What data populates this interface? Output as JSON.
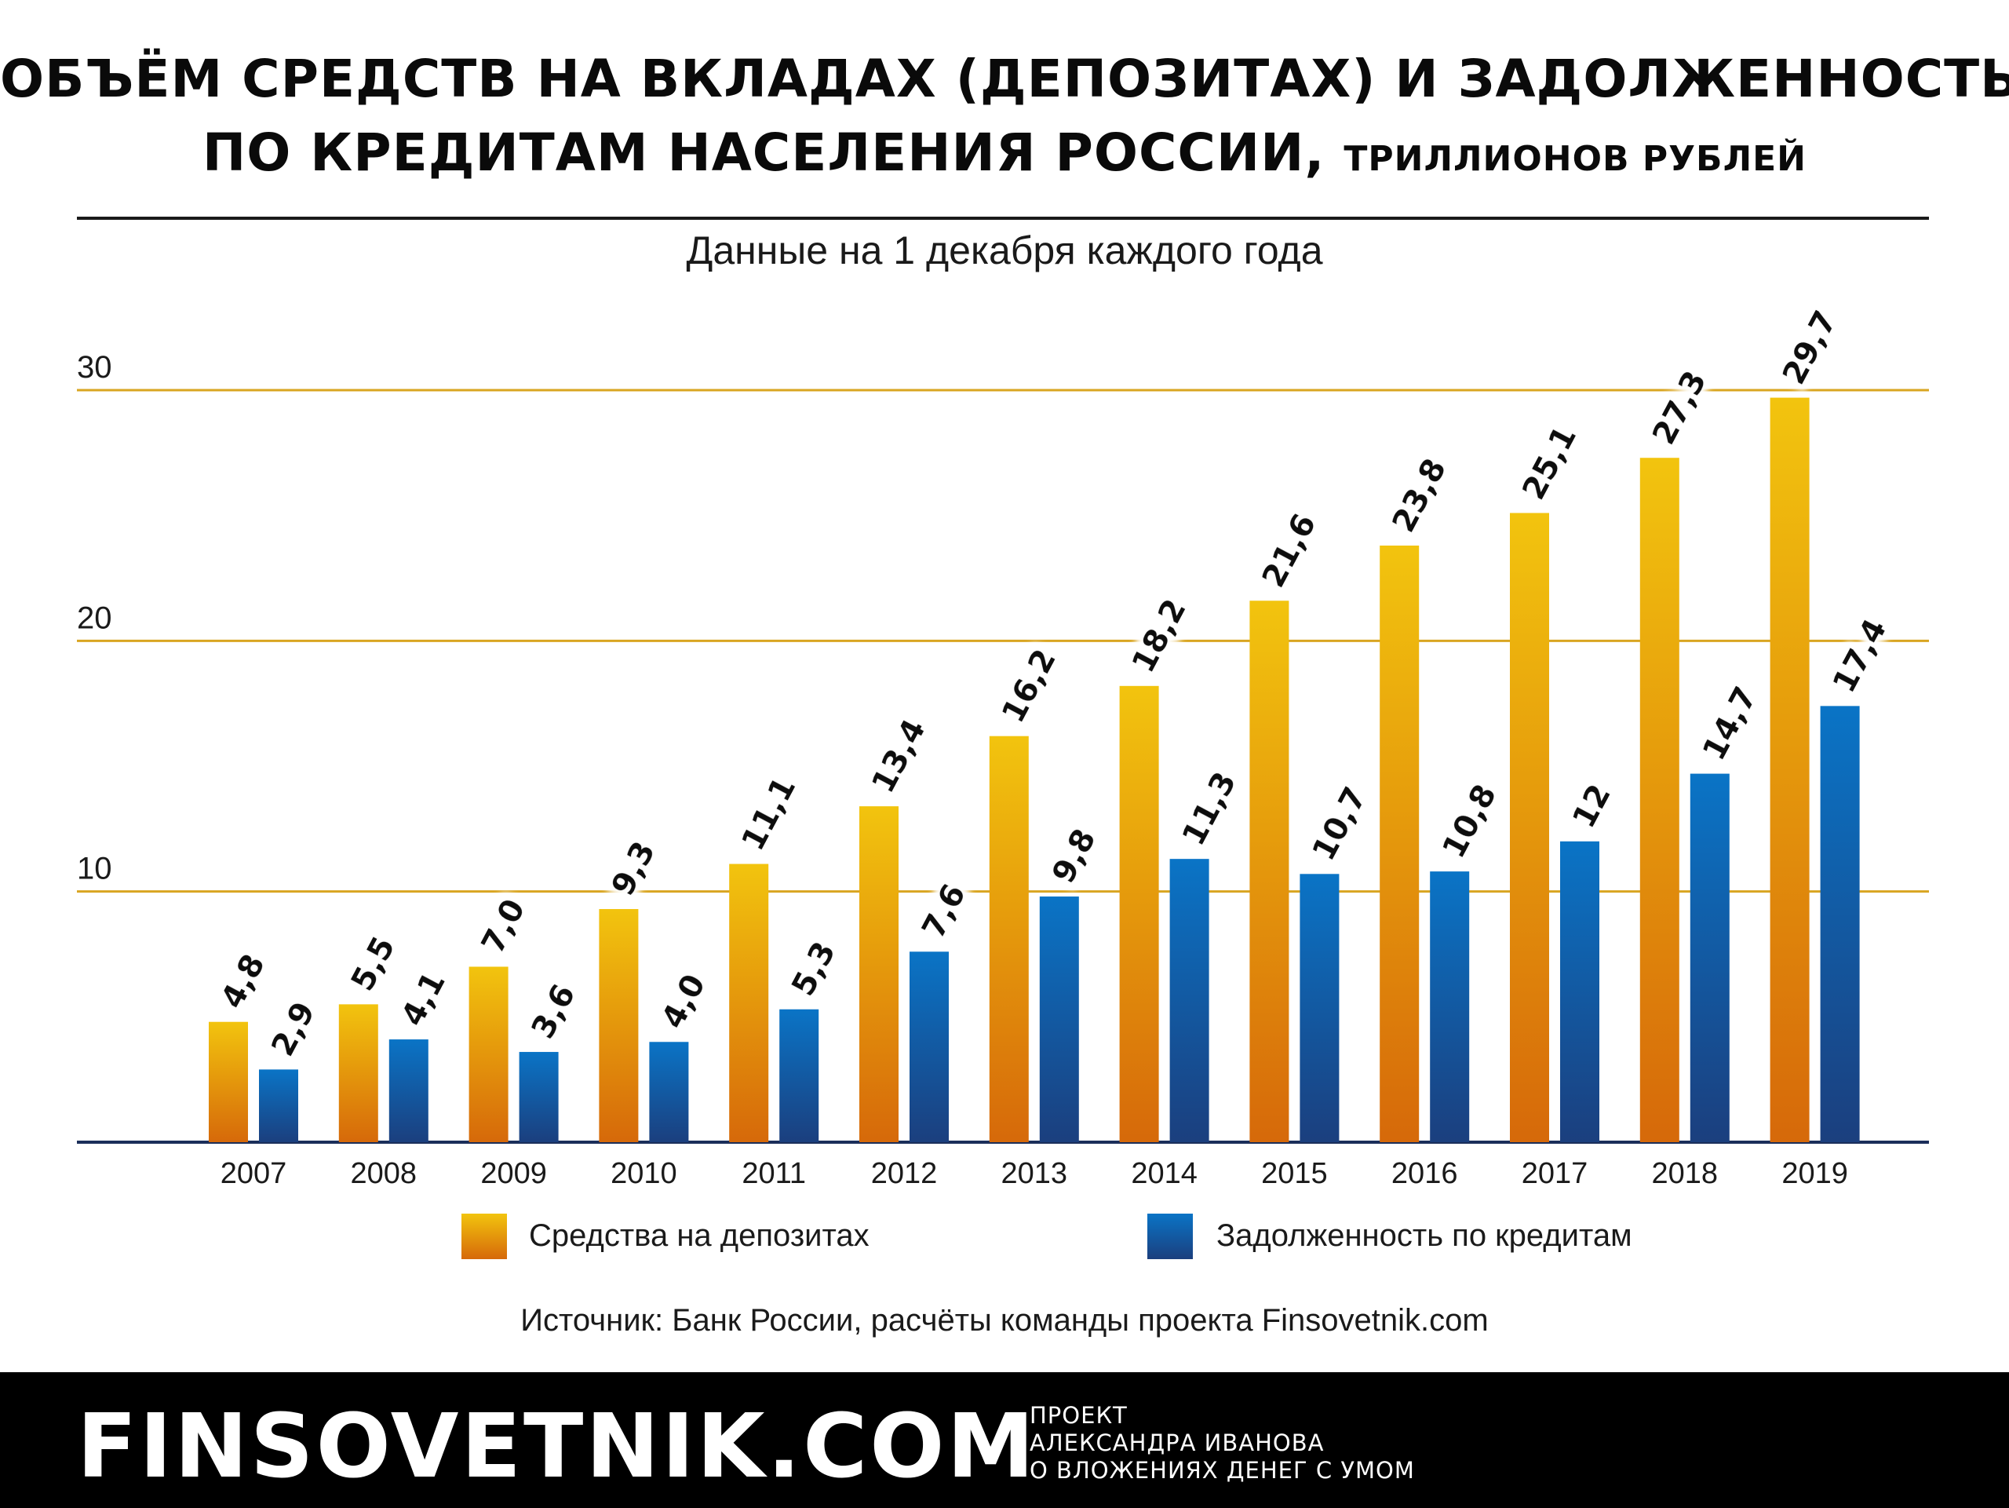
{
  "header": {
    "title_line1": "ОБЪЁМ СРЕДСТВ НА ВКЛАДАХ (ДЕПОЗИТАХ) И ЗАДОЛЖЕННОСТЬ",
    "title_line2": "ПО КРЕДИТАМ НАСЕЛЕНИЯ РОССИИ,",
    "title_units": "ТРИЛЛИОНОВ РУБЛЕЙ",
    "subtitle": "Данные на 1 декабря каждого года"
  },
  "chart_data": {
    "type": "bar",
    "title": "ОБЪЁМ СРЕДСТВ НА ВКЛАДАХ (ДЕПОЗИТАХ) И ЗАДОЛЖЕННОСТЬ ПО КРЕДИТАМ НАСЕЛЕНИЯ РОССИИ, ТРИЛЛИОНОВ РУБЛЕЙ",
    "subtitle": "Данные на 1 декабря каждого года",
    "categories": [
      "2007",
      "2008",
      "2009",
      "2010",
      "2011",
      "2012",
      "2013",
      "2014",
      "2015",
      "2016",
      "2017",
      "2018",
      "2019"
    ],
    "yticks": [
      "10",
      "20",
      "30"
    ],
    "ylim": [
      0,
      30
    ],
    "grid": true,
    "legend_position": "bottom",
    "series": [
      {
        "name": "Средства на депозитах",
        "values": [
          4.8,
          5.5,
          7.0,
          9.3,
          11.1,
          13.4,
          16.2,
          18.2,
          21.6,
          23.8,
          25.1,
          27.3,
          29.7
        ],
        "labels": [
          "4,8",
          "5,5",
          "7,0",
          "9,3",
          "11,1",
          "13,4",
          "16,2",
          "18,2",
          "21,6",
          "23,8",
          "25,1",
          "27,3",
          "29,7"
        ],
        "color_top": "#f2c40e",
        "color_bottom": "#d6690a"
      },
      {
        "name": "Задолженность по кредитам",
        "values": [
          2.9,
          4.1,
          3.6,
          4.0,
          5.3,
          7.6,
          9.8,
          11.3,
          10.7,
          10.8,
          12,
          14.7,
          17.4
        ],
        "labels": [
          "2,9",
          "4,1",
          "3,6",
          "4,0",
          "5,3",
          "7,6",
          "9,8",
          "11,3",
          "10,7",
          "10,8",
          "12",
          "14,7",
          "17,4"
        ],
        "color_top": "#0a74c6",
        "color_bottom": "#1b3f7e"
      }
    ]
  },
  "legend": {
    "deposits": "Средства на депозитах",
    "loans": "Задолженность по кредитам"
  },
  "source": "Источник: Банк России, расчёты команды проекта Finsovetnik.com",
  "footer": {
    "brand": "FINSOVETNIK.COM",
    "tagline_1": "ПРОЕКТ",
    "tagline_2": "АЛЕКСАНДРА ИВАНОВА",
    "tagline_3": "О ВЛОЖЕНИЯХ ДЕНЕГ С УМОМ"
  },
  "colors": {
    "gridline": "#d9a521",
    "axis": "#1b2f5a"
  }
}
